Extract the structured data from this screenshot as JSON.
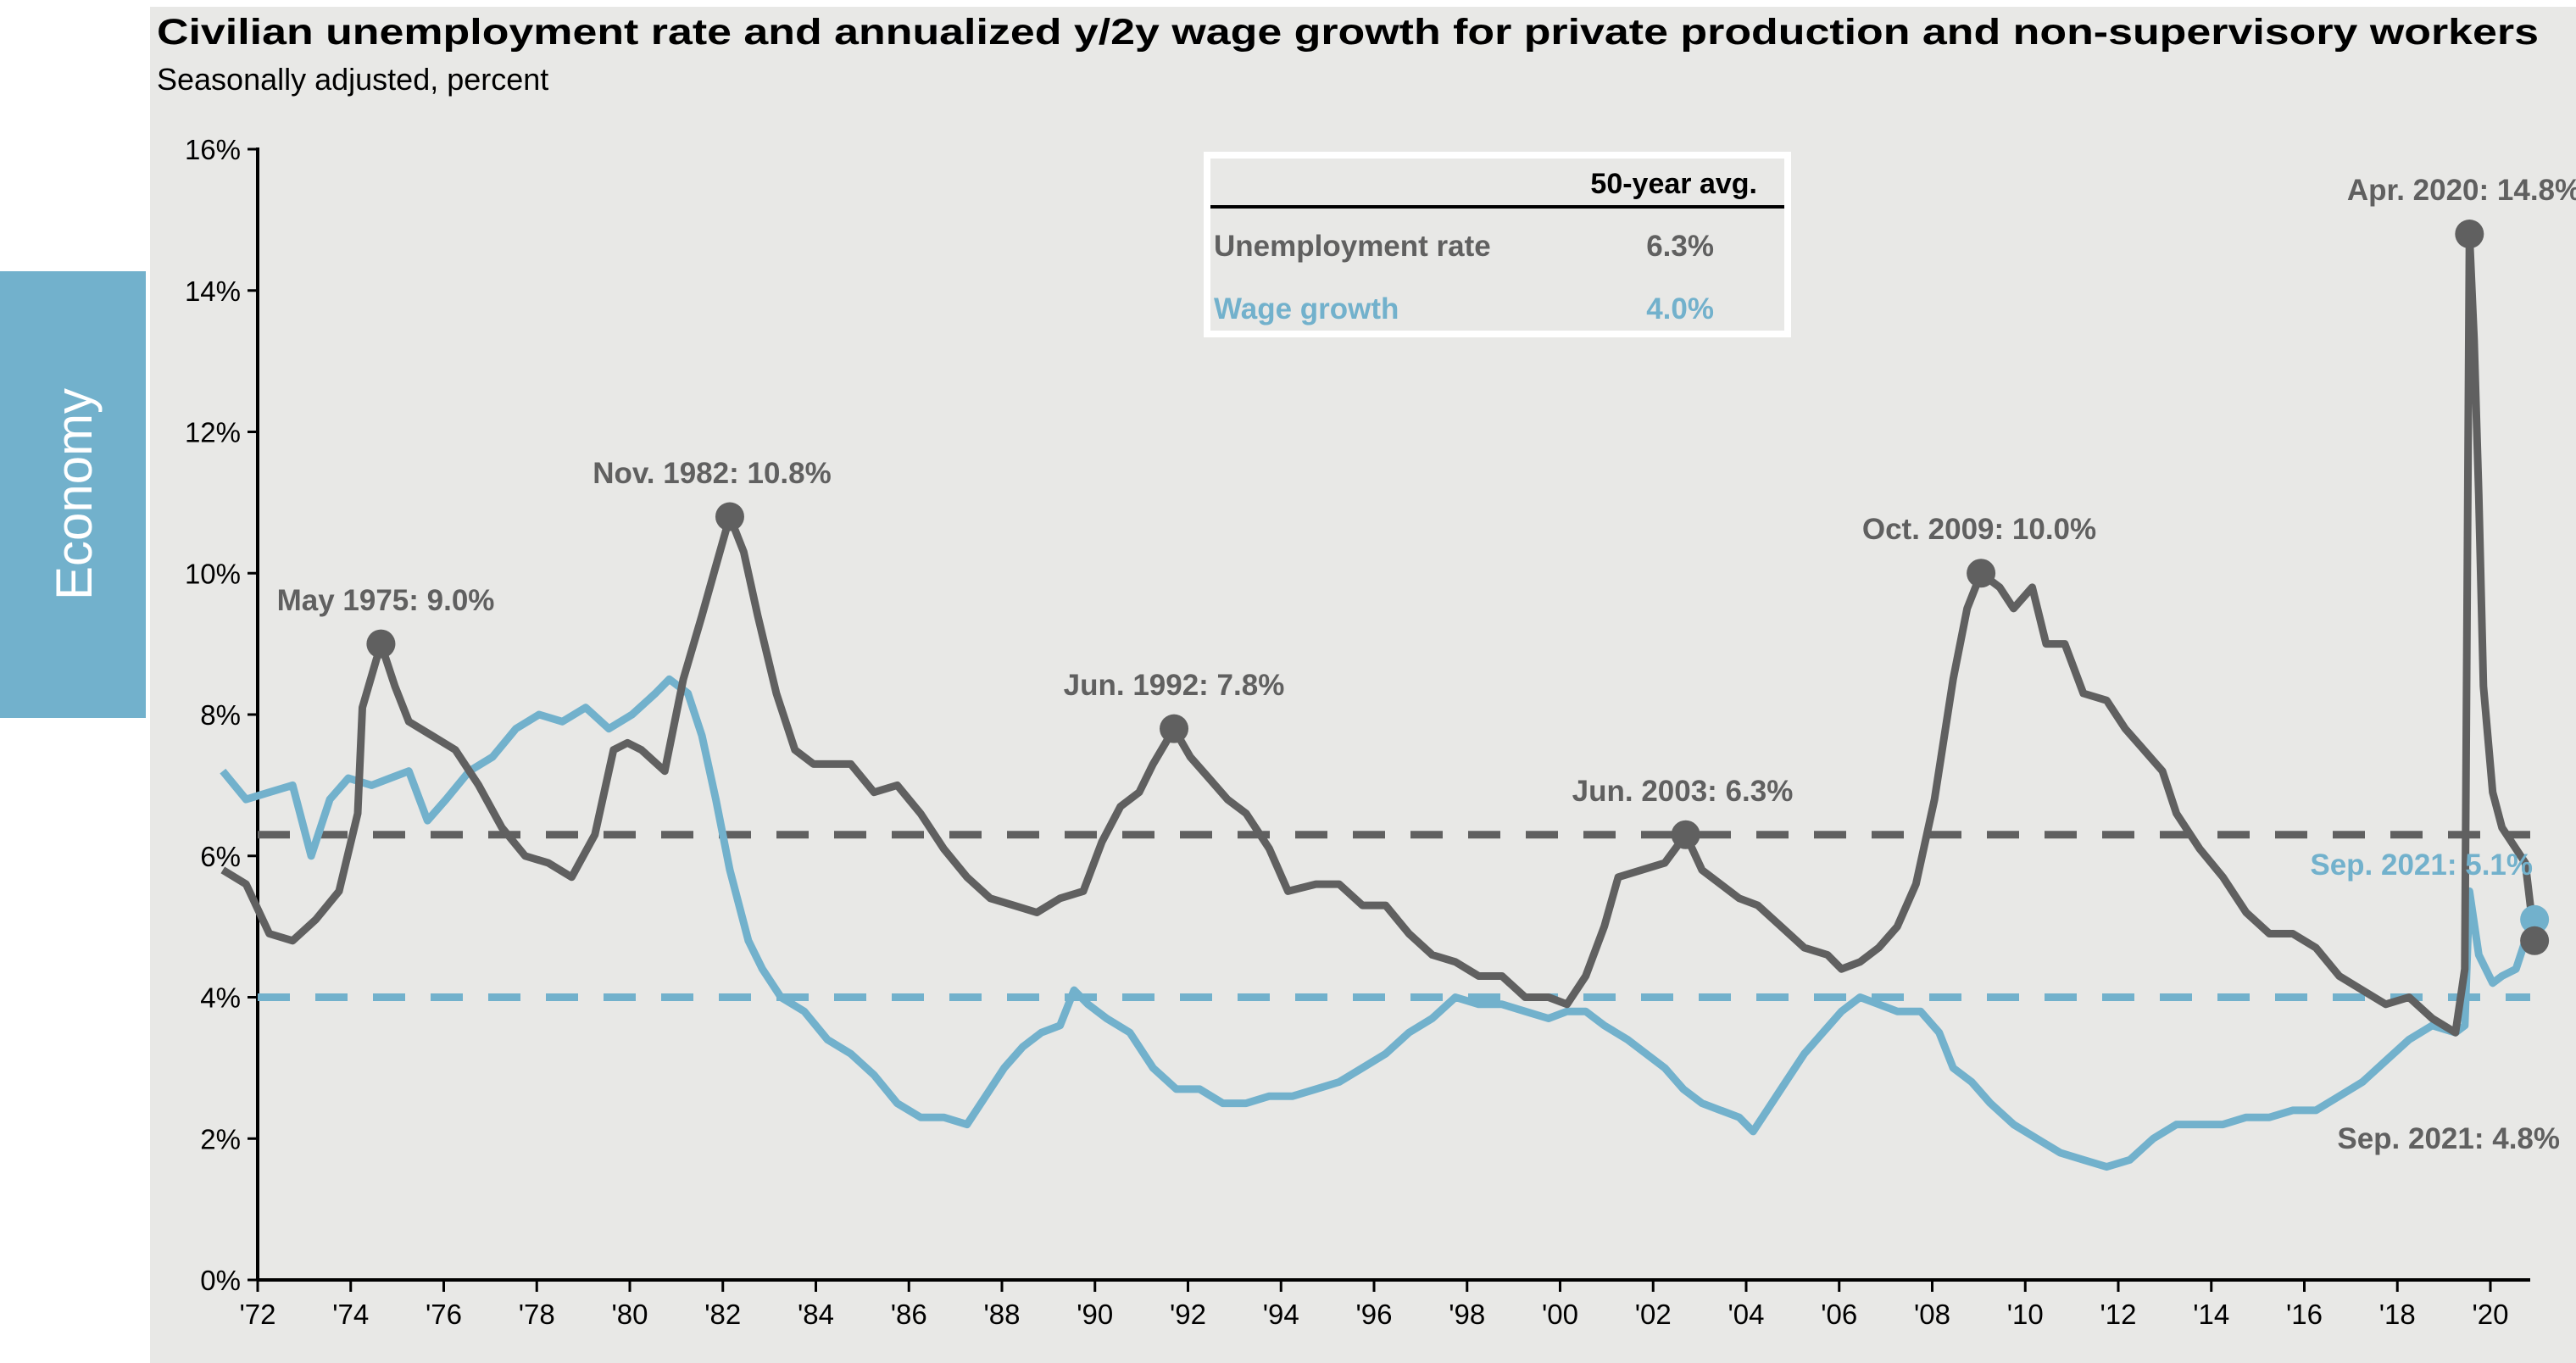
{
  "sidebar_tab": {
    "label": "Economy",
    "color": "#72b1cc"
  },
  "chart_data": {
    "type": "line",
    "title": "Civilian unemployment rate and annualized y/2y wage growth for private production and non-supervisory workers",
    "subtitle": "Seasonally adjusted, percent",
    "ylim": [
      0,
      16
    ],
    "y_ticks": [
      "0%",
      "2%",
      "4%",
      "6%",
      "8%",
      "10%",
      "12%",
      "14%",
      "16%"
    ],
    "x_ticks": [
      "'72",
      "'74",
      "'76",
      "'78",
      "'80",
      "'82",
      "'84",
      "'86",
      "'88",
      "'90",
      "'92",
      "'94",
      "'96",
      "'98",
      "'00",
      "'02",
      "'04",
      "'06",
      "'08",
      "'10",
      "'12",
      "'14",
      "'16",
      "'18",
      "'20"
    ],
    "grid": false,
    "legend": {
      "header": "50-year avg.",
      "rows": [
        {
          "name": "Unemployment rate",
          "value": "6.3%",
          "color": "#606060"
        },
        {
          "name": "Wage growth",
          "value": "4.0%",
          "color": "#72b1cc"
        }
      ]
    },
    "averages": {
      "unemployment": 6.3,
      "wage": 4.0
    },
    "series": [
      {
        "name": "Unemployment rate",
        "color": "#606060",
        "points": [
          [
            1972.0,
            5.8
          ],
          [
            1972.5,
            5.6
          ],
          [
            1973.0,
            4.9
          ],
          [
            1973.5,
            4.8
          ],
          [
            1974.0,
            5.1
          ],
          [
            1974.5,
            5.5
          ],
          [
            1974.9,
            6.6
          ],
          [
            1975.0,
            8.1
          ],
          [
            1975.4,
            9.0
          ],
          [
            1975.7,
            8.4
          ],
          [
            1976.0,
            7.9
          ],
          [
            1976.5,
            7.7
          ],
          [
            1977.0,
            7.5
          ],
          [
            1977.5,
            7.0
          ],
          [
            1978.0,
            6.4
          ],
          [
            1978.5,
            6.0
          ],
          [
            1979.0,
            5.9
          ],
          [
            1979.5,
            5.7
          ],
          [
            1980.0,
            6.3
          ],
          [
            1980.4,
            7.5
          ],
          [
            1980.7,
            7.6
          ],
          [
            1981.0,
            7.5
          ],
          [
            1981.5,
            7.2
          ],
          [
            1981.9,
            8.5
          ],
          [
            1982.3,
            9.4
          ],
          [
            1982.6,
            10.1
          ],
          [
            1982.9,
            10.8
          ],
          [
            1983.2,
            10.3
          ],
          [
            1983.5,
            9.4
          ],
          [
            1983.9,
            8.3
          ],
          [
            1984.3,
            7.5
          ],
          [
            1984.7,
            7.3
          ],
          [
            1985.0,
            7.3
          ],
          [
            1985.5,
            7.3
          ],
          [
            1986.0,
            6.9
          ],
          [
            1986.5,
            7.0
          ],
          [
            1987.0,
            6.6
          ],
          [
            1987.5,
            6.1
          ],
          [
            1988.0,
            5.7
          ],
          [
            1988.5,
            5.4
          ],
          [
            1989.0,
            5.3
          ],
          [
            1989.5,
            5.2
          ],
          [
            1990.0,
            5.4
          ],
          [
            1990.5,
            5.5
          ],
          [
            1990.9,
            6.2
          ],
          [
            1991.3,
            6.7
          ],
          [
            1991.7,
            6.9
          ],
          [
            1992.0,
            7.3
          ],
          [
            1992.45,
            7.8
          ],
          [
            1992.8,
            7.4
          ],
          [
            1993.2,
            7.1
          ],
          [
            1993.6,
            6.8
          ],
          [
            1994.0,
            6.6
          ],
          [
            1994.5,
            6.1
          ],
          [
            1994.9,
            5.5
          ],
          [
            1995.5,
            5.6
          ],
          [
            1996.0,
            5.6
          ],
          [
            1996.5,
            5.3
          ],
          [
            1997.0,
            5.3
          ],
          [
            1997.5,
            4.9
          ],
          [
            1998.0,
            4.6
          ],
          [
            1998.5,
            4.5
          ],
          [
            1999.0,
            4.3
          ],
          [
            1999.5,
            4.3
          ],
          [
            2000.0,
            4.0
          ],
          [
            2000.5,
            4.0
          ],
          [
            2000.9,
            3.9
          ],
          [
            2001.3,
            4.3
          ],
          [
            2001.7,
            5.0
          ],
          [
            2002.0,
            5.7
          ],
          [
            2002.5,
            5.8
          ],
          [
            2003.0,
            5.9
          ],
          [
            2003.45,
            6.3
          ],
          [
            2003.8,
            5.8
          ],
          [
            2004.2,
            5.6
          ],
          [
            2004.6,
            5.4
          ],
          [
            2005.0,
            5.3
          ],
          [
            2005.5,
            5.0
          ],
          [
            2006.0,
            4.7
          ],
          [
            2006.5,
            4.6
          ],
          [
            2006.8,
            4.4
          ],
          [
            2007.2,
            4.5
          ],
          [
            2007.6,
            4.7
          ],
          [
            2008.0,
            5.0
          ],
          [
            2008.4,
            5.6
          ],
          [
            2008.8,
            6.8
          ],
          [
            2009.2,
            8.5
          ],
          [
            2009.5,
            9.5
          ],
          [
            2009.8,
            10.0
          ],
          [
            2010.2,
            9.8
          ],
          [
            2010.5,
            9.5
          ],
          [
            2010.9,
            9.8
          ],
          [
            2011.2,
            9.0
          ],
          [
            2011.6,
            9.0
          ],
          [
            2012.0,
            8.3
          ],
          [
            2012.5,
            8.2
          ],
          [
            2012.9,
            7.8
          ],
          [
            2013.3,
            7.5
          ],
          [
            2013.7,
            7.2
          ],
          [
            2014.0,
            6.6
          ],
          [
            2014.5,
            6.1
          ],
          [
            2015.0,
            5.7
          ],
          [
            2015.5,
            5.2
          ],
          [
            2016.0,
            4.9
          ],
          [
            2016.5,
            4.9
          ],
          [
            2017.0,
            4.7
          ],
          [
            2017.5,
            4.3
          ],
          [
            2018.0,
            4.1
          ],
          [
            2018.5,
            3.9
          ],
          [
            2019.0,
            4.0
          ],
          [
            2019.5,
            3.7
          ],
          [
            2020.0,
            3.5
          ],
          [
            2020.2,
            4.4
          ],
          [
            2020.3,
            14.8
          ],
          [
            2020.4,
            13.3
          ],
          [
            2020.5,
            11.1
          ],
          [
            2020.6,
            8.4
          ],
          [
            2020.8,
            6.9
          ],
          [
            2021.0,
            6.4
          ],
          [
            2021.3,
            6.1
          ],
          [
            2021.5,
            5.9
          ],
          [
            2021.7,
            4.8
          ]
        ]
      },
      {
        "name": "Wage growth",
        "color": "#72b1cc",
        "points": [
          [
            1972.0,
            7.2
          ],
          [
            1972.5,
            6.8
          ],
          [
            1973.0,
            6.9
          ],
          [
            1973.5,
            7.0
          ],
          [
            1973.9,
            6.0
          ],
          [
            1974.3,
            6.8
          ],
          [
            1974.7,
            7.1
          ],
          [
            1975.2,
            7.0
          ],
          [
            1975.6,
            7.1
          ],
          [
            1976.0,
            7.2
          ],
          [
            1976.4,
            6.5
          ],
          [
            1976.8,
            6.8
          ],
          [
            1977.3,
            7.2
          ],
          [
            1977.8,
            7.4
          ],
          [
            1978.3,
            7.8
          ],
          [
            1978.8,
            8.0
          ],
          [
            1979.3,
            7.9
          ],
          [
            1979.8,
            8.1
          ],
          [
            1980.3,
            7.8
          ],
          [
            1980.8,
            8.0
          ],
          [
            1981.3,
            8.3
          ],
          [
            1981.6,
            8.5
          ],
          [
            1982.0,
            8.3
          ],
          [
            1982.3,
            7.7
          ],
          [
            1982.6,
            6.8
          ],
          [
            1982.9,
            5.8
          ],
          [
            1983.3,
            4.8
          ],
          [
            1983.6,
            4.4
          ],
          [
            1984.0,
            4.0
          ],
          [
            1984.5,
            3.8
          ],
          [
            1985.0,
            3.4
          ],
          [
            1985.5,
            3.2
          ],
          [
            1986.0,
            2.9
          ],
          [
            1986.5,
            2.5
          ],
          [
            1987.0,
            2.3
          ],
          [
            1987.5,
            2.3
          ],
          [
            1988.0,
            2.2
          ],
          [
            1988.4,
            2.6
          ],
          [
            1988.8,
            3.0
          ],
          [
            1989.2,
            3.3
          ],
          [
            1989.6,
            3.5
          ],
          [
            1990.0,
            3.6
          ],
          [
            1990.3,
            4.1
          ],
          [
            1990.6,
            3.9
          ],
          [
            1991.0,
            3.7
          ],
          [
            1991.5,
            3.5
          ],
          [
            1992.0,
            3.0
          ],
          [
            1992.5,
            2.7
          ],
          [
            1993.0,
            2.7
          ],
          [
            1993.5,
            2.5
          ],
          [
            1994.0,
            2.5
          ],
          [
            1994.5,
            2.6
          ],
          [
            1995.0,
            2.6
          ],
          [
            1995.5,
            2.7
          ],
          [
            1996.0,
            2.8
          ],
          [
            1996.5,
            3.0
          ],
          [
            1997.0,
            3.2
          ],
          [
            1997.5,
            3.5
          ],
          [
            1998.0,
            3.7
          ],
          [
            1998.5,
            4.0
          ],
          [
            1999.0,
            3.9
          ],
          [
            1999.5,
            3.9
          ],
          [
            2000.0,
            3.8
          ],
          [
            2000.5,
            3.7
          ],
          [
            2000.9,
            3.8
          ],
          [
            2001.3,
            3.8
          ],
          [
            2001.7,
            3.6
          ],
          [
            2002.2,
            3.4
          ],
          [
            2002.6,
            3.2
          ],
          [
            2003.0,
            3.0
          ],
          [
            2003.4,
            2.7
          ],
          [
            2003.8,
            2.5
          ],
          [
            2004.2,
            2.4
          ],
          [
            2004.6,
            2.3
          ],
          [
            2004.9,
            2.1
          ],
          [
            2005.2,
            2.4
          ],
          [
            2005.6,
            2.8
          ],
          [
            2006.0,
            3.2
          ],
          [
            2006.4,
            3.5
          ],
          [
            2006.8,
            3.8
          ],
          [
            2007.2,
            4.0
          ],
          [
            2007.6,
            3.9
          ],
          [
            2008.0,
            3.8
          ],
          [
            2008.5,
            3.8
          ],
          [
            2008.9,
            3.5
          ],
          [
            2009.2,
            3.0
          ],
          [
            2009.6,
            2.8
          ],
          [
            2010.0,
            2.5
          ],
          [
            2010.5,
            2.2
          ],
          [
            2011.0,
            2.0
          ],
          [
            2011.5,
            1.8
          ],
          [
            2012.0,
            1.7
          ],
          [
            2012.5,
            1.6
          ],
          [
            2013.0,
            1.7
          ],
          [
            2013.5,
            2.0
          ],
          [
            2014.0,
            2.2
          ],
          [
            2014.5,
            2.2
          ],
          [
            2015.0,
            2.2
          ],
          [
            2015.5,
            2.3
          ],
          [
            2016.0,
            2.3
          ],
          [
            2016.5,
            2.4
          ],
          [
            2017.0,
            2.4
          ],
          [
            2017.5,
            2.6
          ],
          [
            2018.0,
            2.8
          ],
          [
            2018.5,
            3.1
          ],
          [
            2019.0,
            3.4
          ],
          [
            2019.5,
            3.6
          ],
          [
            2020.0,
            3.5
          ],
          [
            2020.2,
            3.6
          ],
          [
            2020.3,
            5.5
          ],
          [
            2020.5,
            4.6
          ],
          [
            2020.8,
            4.2
          ],
          [
            2021.0,
            4.3
          ],
          [
            2021.3,
            4.4
          ],
          [
            2021.5,
            4.8
          ],
          [
            2021.7,
            5.1
          ]
        ]
      }
    ],
    "annotations": [
      {
        "text": "May 1975: 9.0%",
        "date": 1975.4,
        "value": 9.0,
        "series": "Unemployment rate"
      },
      {
        "text": "Nov. 1982: 10.8%",
        "date": 1982.9,
        "value": 10.8,
        "series": "Unemployment rate"
      },
      {
        "text": "Jun. 1992: 7.8%",
        "date": 1992.45,
        "value": 7.8,
        "series": "Unemployment rate"
      },
      {
        "text": "Jun. 2003: 6.3%",
        "date": 2003.45,
        "value": 6.3,
        "series": "Unemployment rate"
      },
      {
        "text": "Oct. 2009: 10.0%",
        "date": 2009.8,
        "value": 10.0,
        "series": "Unemployment rate"
      },
      {
        "text": "Apr. 2020: 14.8%",
        "date": 2020.3,
        "value": 14.8,
        "series": "Unemployment rate"
      },
      {
        "text": "Sep. 2021: 5.1%",
        "date": 2021.7,
        "value": 5.1,
        "series": "Wage growth"
      },
      {
        "text": "Sep. 2021: 4.8%",
        "date": 2021.7,
        "value": 4.8,
        "series": "Unemployment rate"
      }
    ]
  }
}
